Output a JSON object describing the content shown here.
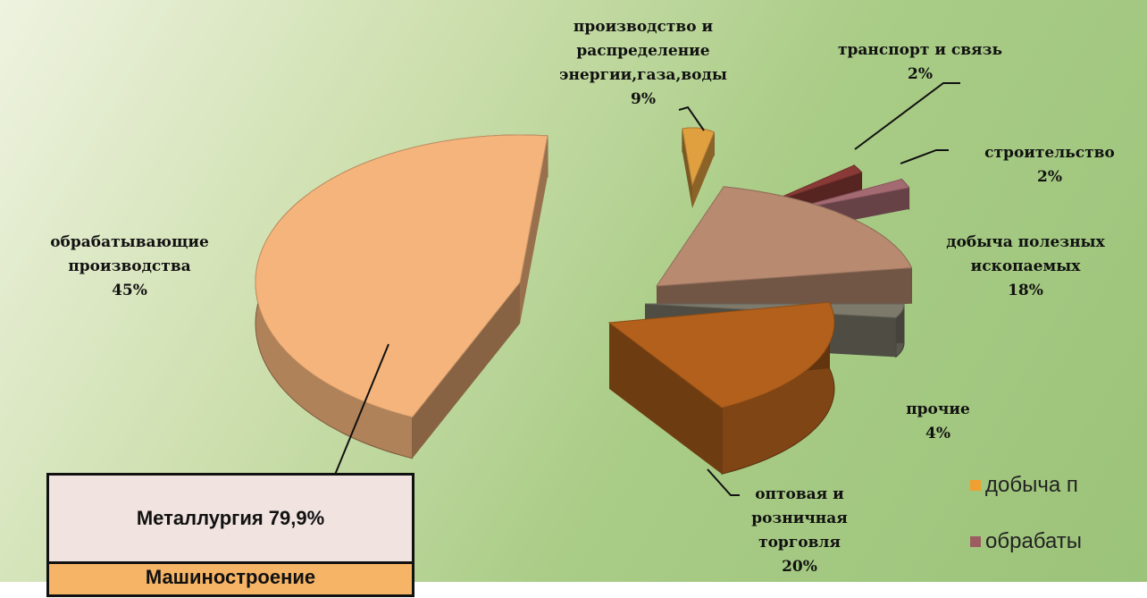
{
  "chart_data": {
    "type": "pie",
    "style": "exploded-3d",
    "slices": [
      {
        "label": "обрабатывающие производства",
        "value": 45,
        "value_text": "45%",
        "color": "#f5b47c"
      },
      {
        "label": "производство и распределение энергии,газа,воды",
        "value": 9,
        "value_text": "9%",
        "color": "#e0a040"
      },
      {
        "label": "транспорт и связь",
        "value": 2,
        "value_text": "2%",
        "color": "#8a3a36"
      },
      {
        "label": "строительство",
        "value": 2,
        "value_text": "2%",
        "color": "#a46a72"
      },
      {
        "label": "добыча полезных ископаемых",
        "value": 18,
        "value_text": "18%",
        "color": "#b88a70"
      },
      {
        "label": "прочие",
        "value": 4,
        "value_text": "4%",
        "color": "#7d7a6c"
      },
      {
        "label": "оптовая и розничная торговля",
        "value": 20,
        "value_text": "20%",
        "color": "#b2601c"
      }
    ],
    "labels": {
      "manufacturing": [
        "обрабатывающие",
        "производства",
        "45%"
      ],
      "energy": [
        "производство и",
        "распределение",
        "энергии,газа,воды",
        "9%"
      ],
      "transport": [
        "транспорт и связь",
        "2%"
      ],
      "construction": [
        "строительство",
        "2%"
      ],
      "mining": [
        "добыча полезных",
        "ископаемых",
        "18%"
      ],
      "other": [
        "прочие",
        "4%"
      ],
      "trade": [
        "оптовая и",
        "розничная",
        "торговля",
        "20%"
      ]
    },
    "breakdown": {
      "metallurgy": "Металлургия 79,9%",
      "machinery": "Машиностроение"
    },
    "legend": [
      {
        "text": "добыча п",
        "color": "#f0a030"
      },
      {
        "text": "обрабаты",
        "color": "#9c5c62"
      }
    ]
  }
}
